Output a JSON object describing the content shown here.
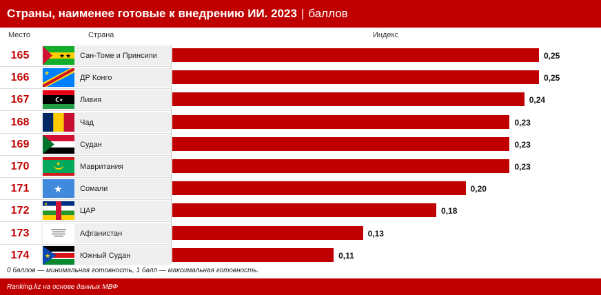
{
  "header": {
    "title": "Страны, наименее готовые к внедрению ИИ. 2023",
    "separator": "|",
    "unit": "баллов"
  },
  "columns": {
    "rank": "Место",
    "country": "Страна",
    "index": "Индекс"
  },
  "chart_data": {
    "type": "bar",
    "orientation": "horizontal",
    "title": "Страны, наименее готовые к внедрению ИИ. 2023",
    "xlabel": "Индекс",
    "ylabel": "",
    "xlim": [
      0,
      0.25
    ],
    "categories": [
      "Сан-Томе и Принсипи",
      "ДР Конго",
      "Ливия",
      "Чад",
      "Судан",
      "Мавритания",
      "Сомали",
      "ЦАР",
      "Афганистан",
      "Южный Судан"
    ],
    "ranks": [
      "165",
      "166",
      "167",
      "168",
      "169",
      "170",
      "171",
      "172",
      "173",
      "174"
    ],
    "values": [
      0.25,
      0.25,
      0.24,
      0.23,
      0.23,
      0.23,
      0.2,
      0.18,
      0.13,
      0.11
    ],
    "value_labels": [
      "0,25",
      "0,25",
      "0,24",
      "0,23",
      "0,23",
      "0,23",
      "0,20",
      "0,18",
      "0,13",
      "0,11"
    ],
    "bar_color": "#c00000"
  },
  "flags": [
    "sao-tome-flag-icon",
    "dr-congo-flag-icon",
    "libya-flag-icon",
    "chad-flag-icon",
    "sudan-flag-icon",
    "mauritania-flag-icon",
    "somalia-flag-icon",
    "car-flag-icon",
    "afghanistan-flag-icon",
    "south-sudan-flag-icon"
  ],
  "note": "0 баллов — минимальная готовность, 1 балл — максимальная готовность.",
  "footer": "Ranking.kz на основе данных МВФ",
  "colors": {
    "accent": "#c00000",
    "row_bg": "#efefef"
  }
}
